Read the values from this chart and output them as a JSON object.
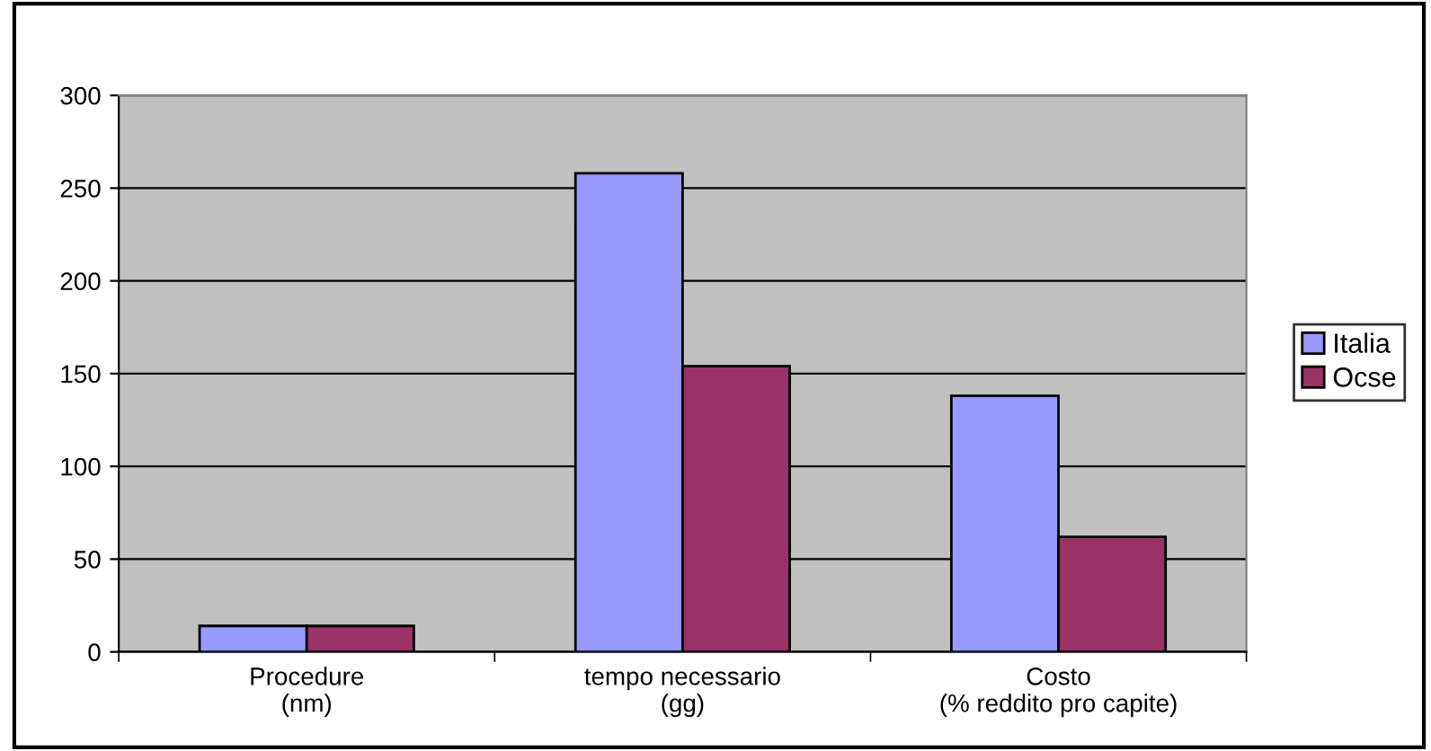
{
  "chart_data": {
    "type": "bar",
    "categories": [
      "Procedure\n(nm)",
      "tempo necessario\n(gg)",
      "Costo\n(% reddito pro capite)"
    ],
    "series": [
      {
        "name": "Italia",
        "color": "#9999ff",
        "values": [
          14,
          258,
          138
        ]
      },
      {
        "name": "Ocse",
        "color": "#993366",
        "values": [
          14,
          154,
          62
        ]
      }
    ],
    "ylim": [
      0,
      300
    ],
    "yticks": [
      0,
      50,
      100,
      150,
      200,
      250,
      300
    ],
    "grid": "y",
    "legend": "right"
  }
}
